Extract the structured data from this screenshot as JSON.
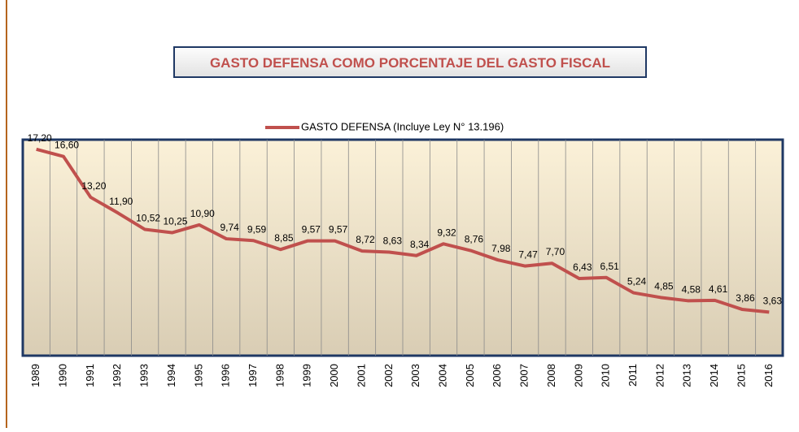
{
  "chart_data": {
    "type": "line",
    "title": "GASTO DEFENSA COMO PORCENTAJE DEL GASTO FISCAL",
    "categories": [
      "1989",
      "1990",
      "1991",
      "1992",
      "1993",
      "1994",
      "1995",
      "1996",
      "1997",
      "1998",
      "1999",
      "2000",
      "2001",
      "2002",
      "2003",
      "2004",
      "2005",
      "2006",
      "2007",
      "2008",
      "2009",
      "2010",
      "2011",
      "2012",
      "2013",
      "2014",
      "2015",
      "2016"
    ],
    "series": [
      {
        "name": "GASTO DEFENSA (Incluye Ley N° 13.196)",
        "color": "#c0504d",
        "values": [
          17.2,
          16.6,
          13.2,
          11.9,
          10.52,
          10.25,
          10.9,
          9.74,
          9.59,
          8.85,
          9.57,
          9.57,
          8.72,
          8.63,
          8.34,
          9.32,
          8.76,
          7.98,
          7.47,
          7.7,
          6.43,
          6.51,
          5.24,
          4.85,
          4.58,
          4.61,
          3.86,
          3.63
        ],
        "value_labels": [
          "17,20",
          "16,60",
          "13,20",
          "11,90",
          "10,52",
          "10,25",
          "10,90",
          "9,74",
          "9,59",
          "8,85",
          "9,57",
          "9,57",
          "8,72",
          "8,63",
          "8,34",
          "9,32",
          "8,76",
          "7,98",
          "7,47",
          "7,70",
          "6,43",
          "6,51",
          "5,24",
          "4,85",
          "4,58",
          "4,61",
          "3,86",
          "3,63"
        ]
      }
    ],
    "ylim": [
      0,
      18
    ],
    "grid": true,
    "legend": "top"
  }
}
